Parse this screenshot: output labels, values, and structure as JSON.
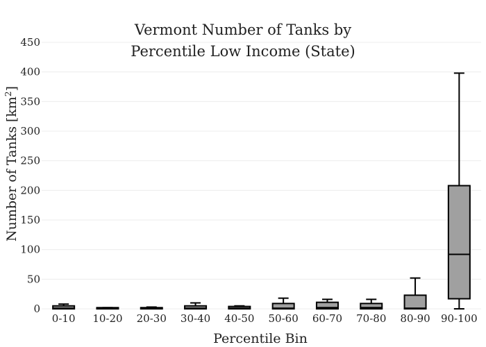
{
  "chart_data": {
    "type": "box",
    "title_lines": [
      "Vermont Number of Tanks by",
      "Percentile Low Income (State)"
    ],
    "xlabel": "Percentile Bin",
    "ylabel": "Number of Tanks  [km",
    "ylabel_sup": "2",
    "ylabel_close": "]",
    "ylim": [
      0,
      450
    ],
    "yticks": [
      0,
      50,
      100,
      150,
      200,
      250,
      300,
      350,
      400,
      450
    ],
    "grid": true,
    "categories": [
      "0-10",
      "10-20",
      "20-30",
      "30-40",
      "40-50",
      "50-60",
      "60-70",
      "70-80",
      "80-90",
      "90-100"
    ],
    "boxes": [
      {
        "min": 0,
        "q1": 0,
        "median": 1,
        "q3": 5,
        "max": 8
      },
      {
        "min": 0,
        "q1": 0,
        "median": 1,
        "q3": 2,
        "max": 2
      },
      {
        "min": 0,
        "q1": 0,
        "median": 1,
        "q3": 2,
        "max": 3
      },
      {
        "min": 0,
        "q1": 0,
        "median": 1,
        "q3": 5,
        "max": 10
      },
      {
        "min": 0,
        "q1": 0,
        "median": 1,
        "q3": 4,
        "max": 5
      },
      {
        "min": 0,
        "q1": 0,
        "median": 1,
        "q3": 9,
        "max": 18
      },
      {
        "min": 0,
        "q1": 0,
        "median": 2,
        "q3": 11,
        "max": 16
      },
      {
        "min": 0,
        "q1": 0,
        "median": 2,
        "q3": 9,
        "max": 16
      },
      {
        "min": 0,
        "q1": 0,
        "median": 1,
        "q3": 23,
        "max": 52
      },
      {
        "min": 0,
        "q1": 17,
        "median": 92,
        "q3": 208,
        "max": 398
      }
    ],
    "colors": {
      "box_fill": "#a0a0a0",
      "box_stroke": "#000000",
      "grid": "#ececec"
    }
  }
}
